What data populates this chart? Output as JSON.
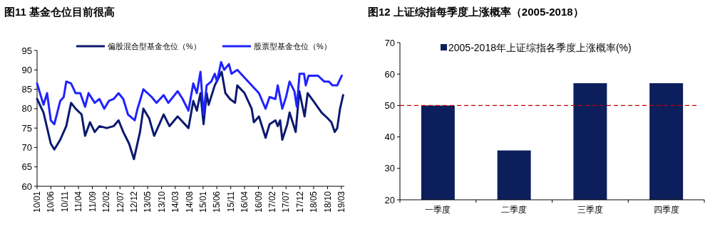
{
  "chart_data": [
    {
      "type": "line",
      "title": "图11 基金仓位目前很高",
      "legend": "top",
      "ylim": [
        60,
        95
      ],
      "yticks": [
        60,
        65,
        70,
        75,
        80,
        85,
        90,
        95
      ],
      "xlim": [
        "2010-01-01",
        "2019-04-03"
      ],
      "xticks": [
        {
          "value": "2010-01",
          "label": "10/01"
        },
        {
          "value": "2010-06",
          "label": "10/06"
        },
        {
          "value": "2010-11",
          "label": "10/11"
        },
        {
          "value": "2011-04",
          "label": "11/04"
        },
        {
          "value": "2011-09",
          "label": "11/09"
        },
        {
          "value": "2012-02",
          "label": "12/02"
        },
        {
          "value": "2012-07",
          "label": "12/07"
        },
        {
          "value": "2012-12",
          "label": "12/12"
        },
        {
          "value": "2013-05",
          "label": "13/05"
        },
        {
          "value": "2013-10",
          "label": "13/10"
        },
        {
          "value": "2014-03",
          "label": "14/03"
        },
        {
          "value": "2014-08",
          "label": "14/08"
        },
        {
          "value": "2015-01",
          "label": "15/01"
        },
        {
          "value": "2015-06",
          "label": "15/06"
        },
        {
          "value": "2015-11",
          "label": "15/11"
        },
        {
          "value": "2016-04",
          "label": "16/04"
        },
        {
          "value": "2016-09",
          "label": "16/09"
        },
        {
          "value": "2017-02",
          "label": "17/02"
        },
        {
          "value": "2017-07",
          "label": "17/07"
        },
        {
          "value": "2017-12",
          "label": "17/12"
        },
        {
          "value": "2018-05",
          "label": "18/05"
        },
        {
          "value": "2018-10",
          "label": "18/10"
        },
        {
          "value": "2019-03",
          "label": "19/03"
        }
      ],
      "series": [
        {
          "name": "偏股混合型基金仓位（%）",
          "color": "#0b1a6e",
          "x": [
            "2010-01-01",
            "2010-03-13",
            "2010-06-01",
            "2010-07-10",
            "2010-09-13",
            "2010-11-18",
            "2011-01-10",
            "2011-03-01",
            "2011-05-06",
            "2011-06-13",
            "2011-08-06",
            "2011-09-27",
            "2011-11-18",
            "2012-02-06",
            "2012-04-22",
            "2012-06-15",
            "2012-08-06",
            "2012-10-09",
            "2012-12-01",
            "2013-02-06",
            "2013-03-15",
            "2013-05-18",
            "2013-07-12",
            "2013-10-24",
            "2013-12-27",
            "2014-03-27",
            "2014-07-24",
            "2014-09-15",
            "2014-10-24",
            "2014-12-03",
            "2015-01-06",
            "2015-02-09",
            "2015-03-03",
            "2015-05-09",
            "2015-07-24",
            "2015-09-03",
            "2015-10-24",
            "2015-12-18",
            "2016-01-12",
            "2016-04-01",
            "2016-06-18",
            "2016-07-12",
            "2016-09-06",
            "2016-11-18",
            "2017-01-01",
            "2017-03-06",
            "2017-04-01",
            "2017-04-27",
            "2017-05-21",
            "2017-07-15",
            "2017-08-09",
            "2017-10-15",
            "2017-11-24",
            "2018-01-21",
            "2018-02-24",
            "2018-04-27",
            "2018-07-27",
            "2018-10-03",
            "2018-11-12",
            "2018-12-18",
            "2019-01-15",
            "2019-02-15",
            "2019-03-21"
          ],
          "values": [
            82.5,
            79,
            71,
            69.5,
            72,
            75.5,
            81.5,
            80,
            78.5,
            73,
            76.5,
            74,
            75.5,
            75,
            75.5,
            77,
            74,
            71,
            67,
            74,
            80,
            77.5,
            73,
            78.5,
            75.5,
            78,
            75,
            82,
            79.5,
            84,
            76,
            84,
            81,
            86,
            89.5,
            84,
            82.5,
            81.5,
            86,
            84,
            80,
            76.5,
            78,
            72.5,
            76,
            77,
            75.5,
            77,
            72,
            76,
            79,
            74,
            84.5,
            78,
            84,
            82,
            79,
            77.5,
            76.5,
            74,
            75,
            80,
            83.5
          ]
        },
        {
          "name": "股票型基金仓位（%）",
          "color": "#1f22ff",
          "x": [
            "2010-01-01",
            "2010-03-13",
            "2010-04-21",
            "2010-06-01",
            "2010-07-10",
            "2010-09-13",
            "2010-10-21",
            "2010-11-18",
            "2011-01-10",
            "2011-03-01",
            "2011-04-21",
            "2011-06-13",
            "2011-07-21",
            "2011-09-27",
            "2011-11-18",
            "2012-01-10",
            "2012-03-01",
            "2012-04-22",
            "2012-06-15",
            "2012-08-06",
            "2012-09-27",
            "2012-12-10",
            "2013-01-10",
            "2013-02-18",
            "2013-03-15",
            "2013-06-15",
            "2013-08-06",
            "2013-10-24",
            "2013-12-15",
            "2014-03-27",
            "2014-05-21",
            "2014-07-24",
            "2014-09-15",
            "2014-10-24",
            "2014-12-03",
            "2015-01-06",
            "2015-02-09",
            "2015-04-01",
            "2015-05-09",
            "2015-06-03",
            "2015-07-18",
            "2015-08-21",
            "2015-10-12",
            "2015-11-09",
            "2016-01-12",
            "2016-04-01",
            "2016-06-18",
            "2016-09-06",
            "2016-11-18",
            "2017-01-01",
            "2017-03-06",
            "2017-04-01",
            "2017-05-21",
            "2017-07-01",
            "2017-08-09",
            "2017-10-01",
            "2017-10-27",
            "2017-11-27",
            "2018-01-15",
            "2018-02-03",
            "2018-03-06",
            "2018-06-18",
            "2018-08-24",
            "2018-10-15",
            "2018-11-24",
            "2019-01-15",
            "2019-03-06"
          ],
          "values": [
            86.5,
            81,
            84,
            77,
            76,
            82,
            83,
            87,
            86.5,
            84,
            84,
            80.5,
            84,
            81.5,
            82.5,
            80,
            82,
            82.5,
            84,
            82.5,
            78.5,
            77,
            80,
            83,
            85,
            83,
            81.5,
            83.5,
            81.5,
            84.5,
            82.5,
            79.5,
            86.5,
            84,
            89.5,
            78.5,
            86,
            87,
            89,
            87,
            92,
            90,
            91.5,
            89,
            90,
            88,
            86,
            84,
            80,
            83,
            82.5,
            86,
            80,
            83,
            87,
            84.5,
            80.5,
            89,
            89,
            86,
            88.5,
            88.5,
            87,
            87,
            86,
            86,
            88.5
          ]
        }
      ]
    },
    {
      "type": "bar",
      "title": "图12 上证综指每季度上涨概率（2005-2018）",
      "legend": "top",
      "categories": [
        "一季度",
        "二季度",
        "三季度",
        "四季度"
      ],
      "ylim": [
        20,
        70
      ],
      "yticks": [
        20,
        30,
        40,
        50,
        60,
        70
      ],
      "series": [
        {
          "name": "2005-2018年上证综指各季度上涨概率(%)",
          "color": "#0c1f5c",
          "values": [
            50,
            35.7,
            57.1,
            57.1
          ]
        }
      ],
      "ref_lines": [
        {
          "axis": "y",
          "value": 50,
          "color": "#c00000",
          "line_style": "dashed"
        }
      ]
    }
  ]
}
